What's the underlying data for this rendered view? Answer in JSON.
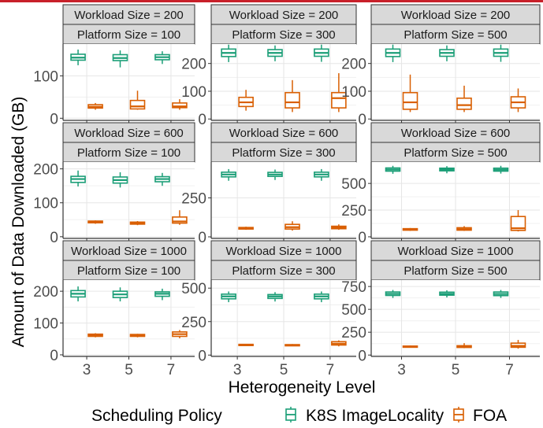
{
  "chart_data": {
    "type": "boxplot",
    "title": "",
    "xlabel": "Heterogeneity Level",
    "ylabel": "Amount of Data Downloaded (GB)",
    "categories": [
      "3",
      "5",
      "7"
    ],
    "legend": {
      "title": "Scheduling Policy",
      "position": "bottom",
      "entries": [
        {
          "name": "K8S ImageLocality",
          "color": "#1b9e77"
        },
        {
          "name": "FOA",
          "color": "#d95f02"
        }
      ]
    },
    "grid": true,
    "panels": [
      {
        "workload_label": "Workload Size = 200",
        "platform_label": "Platform Size = 100",
        "ylim": [
          -5,
          175
        ],
        "yticks": [
          0,
          100
        ],
        "ytick_labels": [
          "0",
          "100"
        ],
        "series": [
          {
            "name": "K8S ImageLocality",
            "boxes": [
              [
                125,
                137,
                143,
                151,
                162
              ],
              [
                120,
                136,
                142,
                150,
                160
              ],
              [
                128,
                138,
                144,
                150,
                158
              ]
            ]
          },
          {
            "name": "FOA",
            "boxes": [
              [
                20,
                24,
                27,
                32,
                36
              ],
              [
                20,
                22,
                28,
                42,
                65
              ],
              [
                20,
                25,
                28,
                36,
                45
              ]
            ]
          }
        ]
      },
      {
        "workload_label": "Workload Size = 200",
        "platform_label": "Platform Size = 300",
        "ylim": [
          -5,
          270
        ],
        "yticks": [
          0,
          100,
          200
        ],
        "ytick_labels": [
          "0",
          "100",
          "200"
        ],
        "series": [
          {
            "name": "K8S ImageLocality",
            "boxes": [
              [
                205,
                225,
                238,
                252,
                268
              ],
              [
                208,
                226,
                238,
                250,
                265
              ],
              [
                206,
                226,
                238,
                252,
                268
              ]
            ]
          },
          {
            "name": "FOA",
            "boxes": [
              [
                30,
                45,
                60,
                78,
                105
              ],
              [
                25,
                40,
                60,
                95,
                140
              ],
              [
                25,
                40,
                75,
                95,
                165
              ]
            ]
          }
        ]
      },
      {
        "workload_label": "Workload Size = 200",
        "platform_label": "Platform Size = 500",
        "ylim": [
          -5,
          270
        ],
        "yticks": [
          0,
          100,
          200
        ],
        "ytick_labels": [
          "0",
          "100",
          "200"
        ],
        "series": [
          {
            "name": "K8S ImageLocality",
            "boxes": [
              [
                205,
                225,
                238,
                252,
                268
              ],
              [
                208,
                226,
                238,
                250,
                265
              ],
              [
                206,
                226,
                238,
                252,
                268
              ]
            ]
          },
          {
            "name": "FOA",
            "boxes": [
              [
                25,
                35,
                60,
                95,
                160
              ],
              [
                25,
                35,
                50,
                75,
                120
              ],
              [
                25,
                40,
                60,
                80,
                110
              ]
            ]
          }
        ]
      },
      {
        "workload_label": "Workload Size = 600",
        "platform_label": "Platform Size = 100",
        "ylim": [
          -5,
          220
        ],
        "yticks": [
          0,
          100,
          200
        ],
        "ytick_labels": [
          "0",
          "100",
          "200"
        ],
        "series": [
          {
            "name": "K8S ImageLocality",
            "boxes": [
              [
                148,
                160,
                170,
                178,
                195
              ],
              [
                145,
                158,
                167,
                176,
                190
              ],
              [
                150,
                162,
                170,
                177,
                188
              ]
            ]
          },
          {
            "name": "FOA",
            "boxes": [
              [
                38,
                41,
                43,
                46,
                48
              ],
              [
                34,
                37,
                40,
                43,
                46
              ],
              [
                35,
                40,
                45,
                58,
                78
              ]
            ]
          }
        ]
      },
      {
        "workload_label": "Workload Size = 600",
        "platform_label": "Platform Size = 300",
        "ylim": [
          -10,
          480
        ],
        "yticks": [
          0,
          250
        ],
        "ytick_labels": [
          "0",
          "250"
        ],
        "series": [
          {
            "name": "K8S ImageLocality",
            "boxes": [
              [
                360,
                385,
                400,
                415,
                435
              ],
              [
                365,
                388,
                400,
                414,
                432
              ],
              [
                360,
                385,
                400,
                415,
                435
              ]
            ]
          },
          {
            "name": "FOA",
            "boxes": [
              [
                45,
                50,
                55,
                60,
                65
              ],
              [
                40,
                50,
                62,
                80,
                100
              ],
              [
                45,
                52,
                60,
                68,
                80
              ]
            ]
          }
        ]
      },
      {
        "workload_label": "Workload Size = 600",
        "platform_label": "Platform Size = 500",
        "ylim": [
          -15,
          700
        ],
        "yticks": [
          0,
          250,
          500
        ],
        "ytick_labels": [
          "0",
          "250",
          "500"
        ],
        "series": [
          {
            "name": "K8S ImageLocality",
            "boxes": [
              [
                590,
                615,
                630,
                645,
                665
              ],
              [
                595,
                618,
                630,
                643,
                662
              ],
              [
                592,
                615,
                628,
                643,
                665
              ]
            ]
          },
          {
            "name": "FOA",
            "boxes": [
              [
                55,
                62,
                70,
                76,
                82
              ],
              [
                55,
                62,
                72,
                85,
                100
              ],
              [
                50,
                60,
                80,
                190,
                250
              ]
            ]
          }
        ]
      },
      {
        "workload_label": "Workload Size = 1000",
        "platform_label": "Platform Size = 100",
        "ylim": [
          -5,
          235
        ],
        "yticks": [
          0,
          100,
          200
        ],
        "ytick_labels": [
          "0",
          "100",
          "200"
        ],
        "series": [
          {
            "name": "K8S ImageLocality",
            "boxes": [
              [
                168,
                182,
                192,
                202,
                215
              ],
              [
                168,
                180,
                190,
                200,
                212
              ],
              [
                172,
                184,
                192,
                198,
                208
              ]
            ]
          },
          {
            "name": "FOA",
            "boxes": [
              [
                55,
                58,
                62,
                65,
                68
              ],
              [
                55,
                58,
                61,
                64,
                66
              ],
              [
                52,
                58,
                65,
                72,
                78
              ]
            ]
          }
        ]
      },
      {
        "workload_label": "Workload Size = 1000",
        "platform_label": "Platform Size = 300",
        "ylim": [
          -10,
          560
        ],
        "yticks": [
          0,
          250,
          500
        ],
        "ytick_labels": [
          "0",
          "250",
          "500"
        ],
        "series": [
          {
            "name": "K8S ImageLocality",
            "boxes": [
              [
                395,
                420,
                438,
                455,
                475
              ],
              [
                400,
                423,
                438,
                452,
                470
              ],
              [
                395,
                420,
                438,
                455,
                475
              ]
            ]
          },
          {
            "name": "FOA",
            "boxes": [
              [
                70,
                73,
                76,
                80,
                83
              ],
              [
                68,
                71,
                74,
                78,
                82
              ],
              [
                65,
                75,
                85,
                100,
                110
              ]
            ]
          }
        ]
      },
      {
        "workload_label": "Workload Size = 1000",
        "platform_label": "Platform Size = 500",
        "ylim": [
          -15,
          820
        ],
        "yticks": [
          0,
          250,
          500,
          750
        ],
        "ytick_labels": [
          "0",
          "250",
          "500",
          "750"
        ],
        "series": [
          {
            "name": "K8S ImageLocality",
            "boxes": [
              [
                625,
                652,
                670,
                690,
                712
              ],
              [
                630,
                655,
                670,
                688,
                708
              ],
              [
                625,
                650,
                668,
                690,
                712
              ]
            ]
          },
          {
            "name": "FOA",
            "boxes": [
              [
                80,
                86,
                92,
                98,
                104
              ],
              [
                75,
                83,
                92,
                102,
                130
              ],
              [
                70,
                85,
                100,
                130,
                165
              ]
            ]
          }
        ]
      }
    ]
  }
}
